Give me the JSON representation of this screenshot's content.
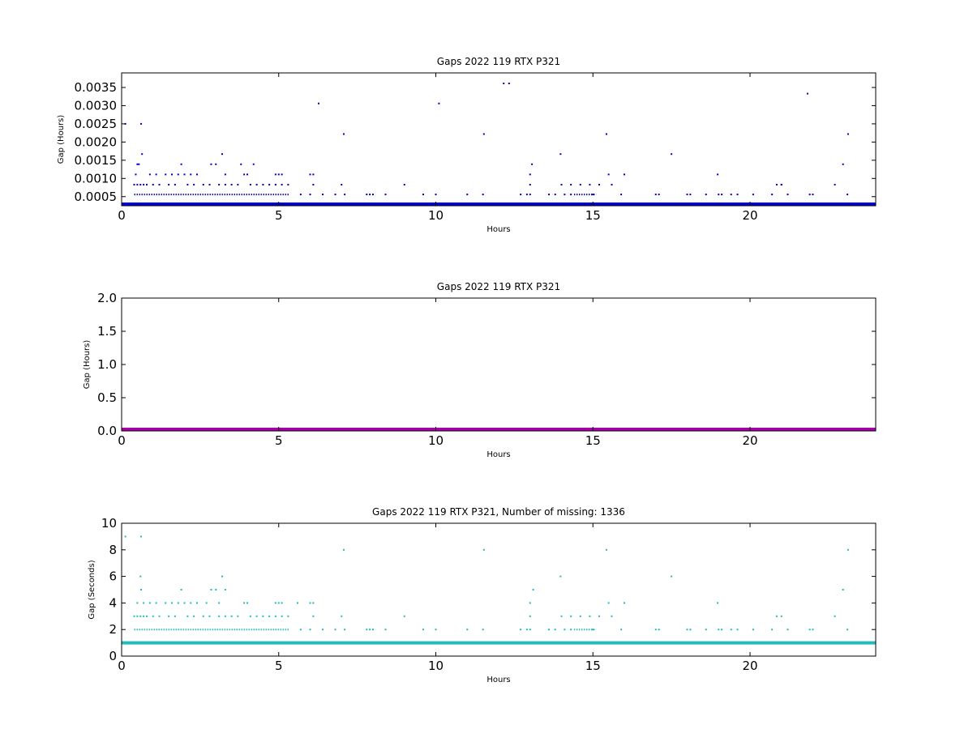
{
  "chart_data": [
    {
      "type": "scatter",
      "title": "Gaps 2022 119 RTX  P321",
      "xlabel": "Hours",
      "ylabel": "Gap (Hours)",
      "xlim": [
        0,
        24
      ],
      "ylim": [
        0.00025,
        0.0039
      ],
      "xticks": [
        "0",
        "5",
        "10",
        "15",
        "20"
      ],
      "yticks": [
        "0.0005",
        "0.0010",
        "0.0015",
        "0.0020",
        "0.0025",
        "0.0030",
        "0.0035"
      ],
      "color": "#0000cc",
      "baseline": {
        "y": 0.00028,
        "x_start": 0,
        "x_end": 24
      },
      "series": [
        {
          "x": [
            0.12,
            0.62,
            6.27,
            7.07,
            10.1,
            11.53,
            12.16,
            12.33,
            13.97,
            15.43,
            17.5,
            21.83,
            22.96,
            23.12,
            0.5,
            0.55,
            1.9,
            2.85,
            3.0,
            3.8,
            4.2,
            13.06,
            0.45,
            0.65,
            0.9,
            1.1,
            1.4,
            1.6,
            1.8,
            2.0,
            2.2,
            2.4,
            3.2,
            3.3,
            3.9,
            4.0,
            4.9,
            5.0,
            5.1,
            6.0,
            6.1,
            13.0,
            15.5,
            16.0,
            18.97,
            20.85,
            21.0
          ],
          "y": [
            0.0025,
            0.0025,
            0.00306,
            0.00222,
            0.00306,
            0.00222,
            0.00361,
            0.00361,
            0.00167,
            0.00222,
            0.00167,
            0.00333,
            0.00139,
            0.00222,
            0.00139,
            0.00139,
            0.00139,
            0.00139,
            0.00139,
            0.00139,
            0.00139,
            0.00139,
            0.00111,
            0.00167,
            0.00111,
            0.00111,
            0.00111,
            0.00111,
            0.00111,
            0.00111,
            0.00111,
            0.00111,
            0.00167,
            0.00111,
            0.00111,
            0.00111,
            0.00111,
            0.00111,
            0.00111,
            0.00111,
            0.00111,
            0.00111,
            0.00111,
            0.00111,
            0.00111,
            0.00083,
            0.00083
          ]
        },
        {
          "x": [
            0.4,
            0.5,
            0.6,
            0.7,
            0.8,
            1.0,
            1.2,
            1.5,
            1.7,
            2.1,
            2.3,
            2.6,
            2.8,
            3.1,
            3.3,
            3.5,
            3.7,
            4.1,
            4.3,
            4.5,
            4.7,
            4.9,
            5.1,
            5.3,
            6.1,
            7.0,
            9.0,
            13.0,
            14.0,
            14.3,
            14.6,
            14.9,
            15.2,
            15.6,
            21.0,
            22.7
          ],
          "y": [
            0.00083,
            0.00083,
            0.00083,
            0.00083,
            0.00083,
            0.00083,
            0.00083,
            0.00083,
            0.00083,
            0.00083,
            0.00083,
            0.00083,
            0.00083,
            0.00083,
            0.00083,
            0.00083,
            0.00083,
            0.00083,
            0.00083,
            0.00083,
            0.00083,
            0.00083,
            0.00083,
            0.00083,
            0.00083,
            0.00083,
            0.00083,
            0.00083,
            0.00083,
            0.00083,
            0.00083,
            0.00083,
            0.00083,
            0.00083,
            0.00083,
            0.00083
          ]
        },
        {
          "x": [
            5.7,
            6.0,
            6.4,
            6.8,
            7.1,
            7.8,
            7.9,
            8.0,
            8.4,
            9.6,
            10.0,
            11.0,
            11.5,
            12.7,
            12.9,
            13.0,
            13.6,
            13.8,
            14.1,
            14.3,
            15.0,
            15.9,
            17.0,
            17.1,
            18.0,
            18.1,
            18.6,
            19.0,
            19.1,
            19.4,
            19.6,
            20.1,
            20.7,
            21.2,
            21.9,
            22.0,
            23.1
          ],
          "y": [
            0.00056,
            0.00056,
            0.00056,
            0.00056,
            0.00056,
            0.00056,
            0.00056,
            0.00056,
            0.00056,
            0.00056,
            0.00056,
            0.00056,
            0.00056,
            0.00056,
            0.00056,
            0.00056,
            0.00056,
            0.00056,
            0.00056,
            0.00056,
            0.00056,
            0.00056,
            0.00056,
            0.00056,
            0.00056,
            0.00056,
            0.00056,
            0.00056,
            0.00056,
            0.00056,
            0.00056,
            0.00056,
            0.00056,
            0.00056,
            0.00056,
            0.00056,
            0.00056
          ]
        }
      ],
      "dense_rows": [
        {
          "y": 0.00056,
          "x_start": 0.4,
          "x_end": 5.35
        },
        {
          "y": 0.00056,
          "x_start": 14.4,
          "x_end": 15.1
        }
      ]
    },
    {
      "type": "scatter",
      "title": "Gaps 2022 119 RTX  P321",
      "xlabel": "Hours",
      "ylabel": "Gap (Hours)",
      "xlim": [
        0,
        24
      ],
      "ylim": [
        0,
        2.0
      ],
      "xticks": [
        "0",
        "5",
        "10",
        "15",
        "20"
      ],
      "yticks": [
        "0.0",
        "0.5",
        "1.0",
        "1.5",
        "2.0"
      ],
      "color": "#aa00aa",
      "baseline": {
        "y": 0.0,
        "x_start": 0,
        "x_end": 24
      },
      "series": []
    },
    {
      "type": "scatter",
      "title": "Gaps 2022 119 RTX  P321, Number of missing: 1336",
      "xlabel": "Hours",
      "ylabel": "Gap (Seconds)",
      "xlim": [
        0,
        24
      ],
      "ylim": [
        0,
        10
      ],
      "xticks": [
        "0",
        "5",
        "10",
        "15",
        "20"
      ],
      "yticks": [
        "0",
        "2",
        "4",
        "6",
        "8",
        "10"
      ],
      "color": "#22bbbb",
      "baseline": {
        "y": 1,
        "x_start": 0,
        "x_end": 24
      },
      "series": [
        {
          "x": [
            0.12,
            0.62,
            7.07,
            11.53,
            15.43,
            23.12,
            0.6,
            3.2,
            13.97,
            17.5,
            0.62,
            1.9,
            2.85,
            3.0,
            3.3,
            13.1,
            22.96,
            0.5,
            0.7,
            0.9,
            1.1,
            1.4,
            1.6,
            1.8,
            2.0,
            2.2,
            2.4,
            2.7,
            3.1,
            3.9,
            4.0,
            4.9,
            5.0,
            5.1,
            5.6,
            6.0,
            6.1,
            13.0,
            15.5,
            16.0,
            18.97
          ],
          "y": [
            9,
            9,
            8,
            8,
            8,
            8,
            6,
            6,
            6,
            6,
            5,
            5,
            5,
            5,
            5,
            5,
            5,
            4,
            4,
            4,
            4,
            4,
            4,
            4,
            4,
            4,
            4,
            4,
            4,
            4,
            4,
            4,
            4,
            4,
            4,
            4,
            4,
            4,
            4,
            4,
            4
          ]
        },
        {
          "x": [
            0.4,
            0.5,
            0.6,
            0.7,
            0.8,
            1.0,
            1.2,
            1.5,
            1.7,
            2.1,
            2.3,
            2.6,
            2.8,
            3.1,
            3.3,
            3.5,
            3.7,
            4.1,
            4.3,
            4.5,
            4.7,
            4.9,
            5.1,
            5.3,
            6.1,
            7.0,
            9.0,
            13.0,
            14.0,
            14.3,
            14.6,
            14.9,
            15.2,
            15.6,
            20.85,
            21.0,
            22.7
          ],
          "y": [
            3,
            3,
            3,
            3,
            3,
            3,
            3,
            3,
            3,
            3,
            3,
            3,
            3,
            3,
            3,
            3,
            3,
            3,
            3,
            3,
            3,
            3,
            3,
            3,
            3,
            3,
            3,
            3,
            3,
            3,
            3,
            3,
            3,
            3,
            3,
            3,
            3
          ]
        },
        {
          "x": [
            5.7,
            6.0,
            6.4,
            6.8,
            7.1,
            7.8,
            7.9,
            8.0,
            8.4,
            9.6,
            10.0,
            11.0,
            11.5,
            12.7,
            12.9,
            13.0,
            13.6,
            13.8,
            14.1,
            14.3,
            15.0,
            15.9,
            17.0,
            17.1,
            18.0,
            18.1,
            18.6,
            19.0,
            19.1,
            19.4,
            19.6,
            20.1,
            20.7,
            21.2,
            21.9,
            22.0,
            23.1
          ],
          "y": [
            2,
            2,
            2,
            2,
            2,
            2,
            2,
            2,
            2,
            2,
            2,
            2,
            2,
            2,
            2,
            2,
            2,
            2,
            2,
            2,
            2,
            2,
            2,
            2,
            2,
            2,
            2,
            2,
            2,
            2,
            2,
            2,
            2,
            2,
            2,
            2,
            2
          ]
        }
      ],
      "dense_rows": [
        {
          "y": 2,
          "x_start": 0.4,
          "x_end": 5.35
        },
        {
          "y": 2,
          "x_start": 14.4,
          "x_end": 15.1
        }
      ]
    }
  ]
}
